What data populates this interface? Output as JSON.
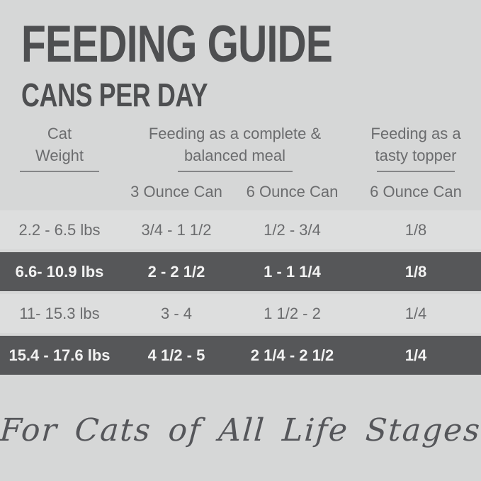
{
  "page": {
    "title": "FEEDING GUIDE",
    "subtitle": "CANS PER DAY",
    "footer": "For Cats of All Life Stages"
  },
  "table": {
    "groups": {
      "weight_line1": "Cat",
      "weight_line2": "Weight",
      "meal_line1": "Feeding as a complete &",
      "meal_line2": "balanced meal",
      "topper_line1": "Feeding as a",
      "topper_line2": "tasty topper"
    },
    "subheader": {
      "meal_small_can": "3 Ounce Can",
      "meal_large_can": "6 Ounce Can",
      "topper_can": "6 Ounce Can"
    },
    "rows": [
      {
        "weight": "2.2 - 6.5 lbs",
        "can3oz": "3/4 - 1 1/2",
        "can6oz": "1/2 - 3/4",
        "topper6oz": "1/8"
      },
      {
        "weight": "6.6- 10.9 lbs",
        "can3oz": "2 - 2 1/2",
        "can6oz": "1 - 1 1/4",
        "topper6oz": "1/8"
      },
      {
        "weight": "11- 15.3 lbs",
        "can3oz": "3 - 4",
        "can6oz": "1 1/2 - 2",
        "topper6oz": "1/4"
      },
      {
        "weight": "15.4 - 17.6 lbs",
        "can3oz": "4 1/2 - 5",
        "can6oz": "2 1/4 - 2 1/2",
        "topper6oz": "1/4"
      }
    ]
  },
  "colors": {
    "page_bg": "#d6d7d7",
    "light_row_bg": "#dddede",
    "dark_row_bg": "#565759",
    "title_text": "#4e4f51",
    "body_text": "#6b6c6e",
    "dark_row_text": "#f2f2f2",
    "underline": "#858688",
    "script_text": "#55565a"
  }
}
